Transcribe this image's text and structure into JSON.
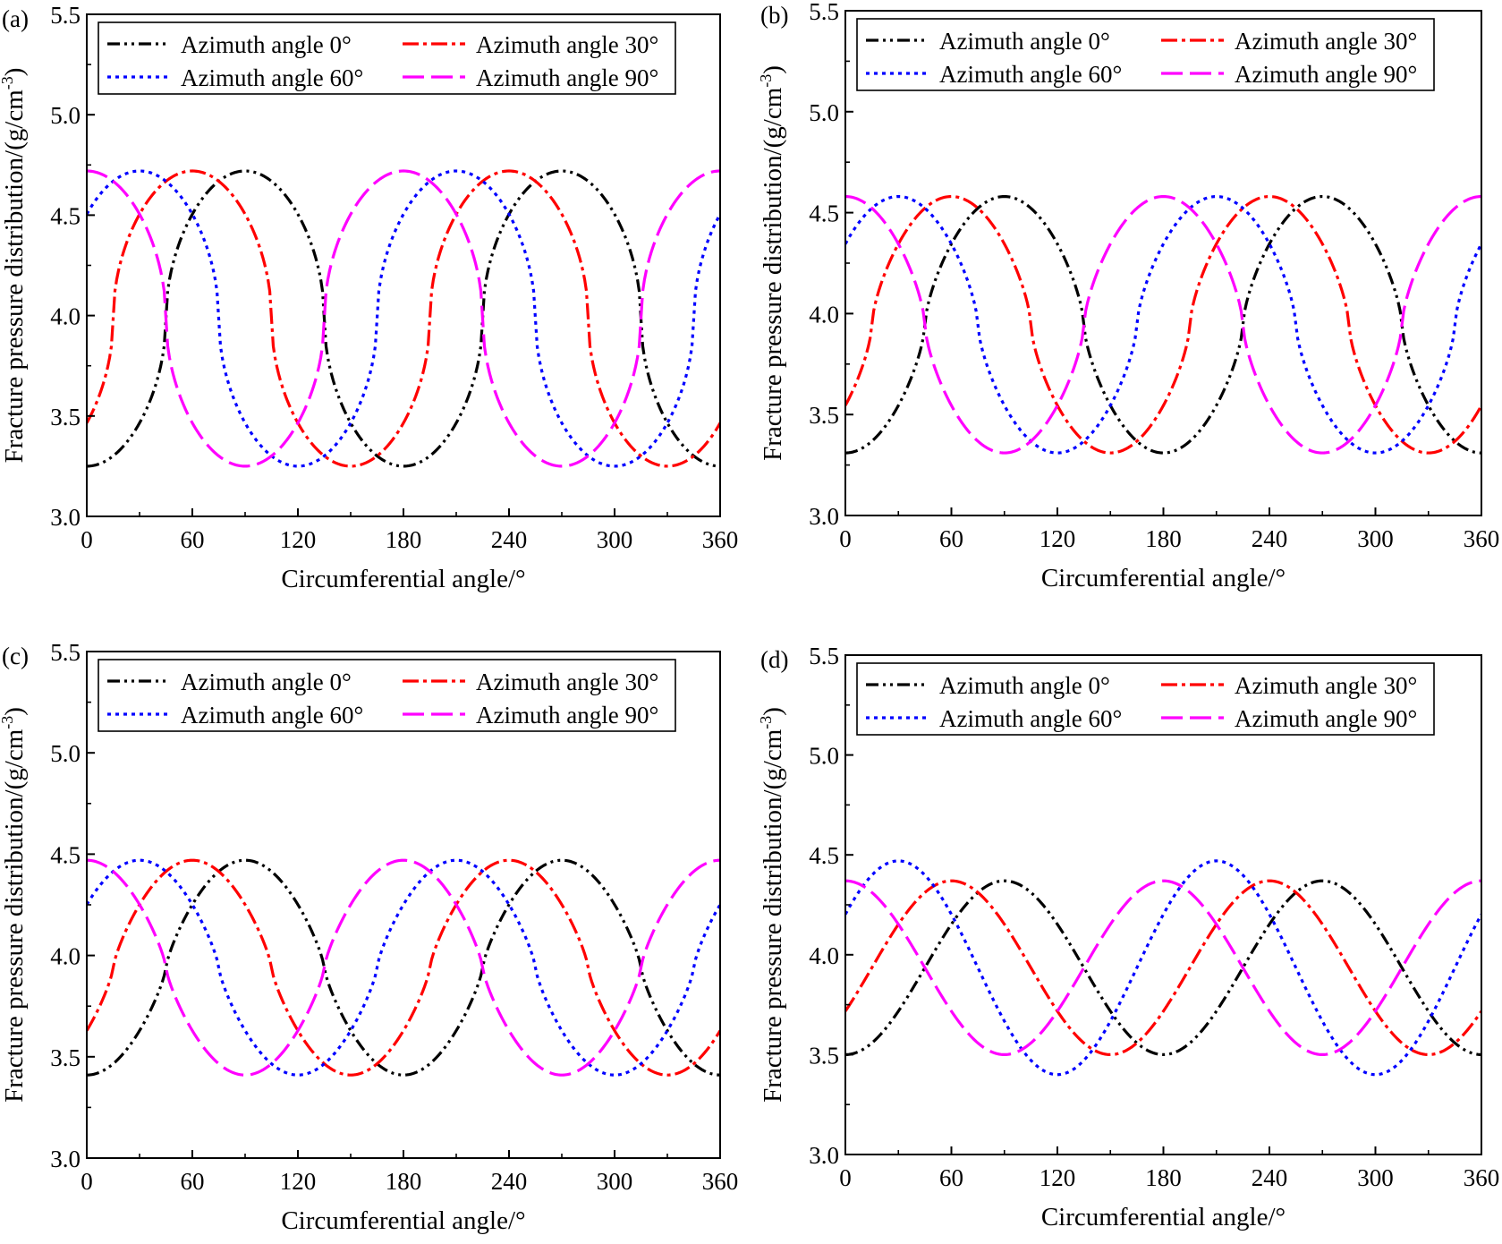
{
  "figure": {
    "colors": {
      "az0": "#000000",
      "az30": "#ff0000",
      "az60": "#0000ff",
      "az90": "#ff00ff"
    }
  },
  "chart_data": [
    {
      "type": "line",
      "panel_label": "(a)",
      "xlabel": "Circumferential angle/°",
      "ylabel_main": "Fracture pressure distribution/(g/cm",
      "ylabel_sup": "-3",
      "ylabel_tail": ")",
      "xlim": [
        0,
        360
      ],
      "ylim": [
        3.0,
        5.5
      ],
      "xticks": [
        0,
        60,
        120,
        180,
        240,
        300,
        360
      ],
      "xtick_labels": [
        "0",
        "60",
        "120",
        "180",
        "240",
        "300",
        "360"
      ],
      "yticks": [
        3.0,
        3.5,
        4.0,
        4.5,
        5.0,
        5.5
      ],
      "ytick_labels": [
        "3.0",
        "3.5",
        "4.0",
        "4.5",
        "5.0",
        "5.5"
      ],
      "legend_position": "top-left",
      "series": [
        {
          "name": "Azimuth angle 0°",
          "color": "#000000",
          "dash": "dashdotdot",
          "min": 3.25,
          "max": 4.72,
          "peak_at": 90,
          "sharpness": 2
        },
        {
          "name": "Azimuth angle 30°",
          "color": "#ff0000",
          "dash": "dashdot",
          "min": 3.25,
          "max": 4.72,
          "peak_at": 60,
          "sharpness": 2
        },
        {
          "name": "Azimuth angle 60°",
          "color": "#0000ff",
          "dash": "dotted",
          "min": 3.25,
          "max": 4.72,
          "peak_at": 30,
          "sharpness": 2
        },
        {
          "name": "Azimuth angle 90°",
          "color": "#ff00ff",
          "dash": "dashed",
          "min": 3.25,
          "max": 4.72,
          "peak_at": 0,
          "sharpness": 2
        }
      ]
    },
    {
      "type": "line",
      "panel_label": "(b)",
      "xlabel": "Circumferential angle/°",
      "ylabel_main": "Fracture pressure distribution/(g/cm",
      "ylabel_sup": "-3",
      "ylabel_tail": ")",
      "xlim": [
        0,
        360
      ],
      "ylim": [
        3.0,
        5.5
      ],
      "xticks": [
        0,
        60,
        120,
        180,
        240,
        300,
        360
      ],
      "xtick_labels": [
        "0",
        "60",
        "120",
        "180",
        "240",
        "300",
        "360"
      ],
      "yticks": [
        3.0,
        3.5,
        4.0,
        4.5,
        5.0,
        5.5
      ],
      "ytick_labels": [
        "3.0",
        "3.5",
        "4.0",
        "4.5",
        "5.0",
        "5.5"
      ],
      "legend_position": "top-left",
      "series": [
        {
          "name": "Azimuth angle 0°",
          "color": "#000000",
          "dash": "dashdotdot",
          "min": 3.31,
          "max": 4.58,
          "peak_at": 90,
          "sharpness": 1.5
        },
        {
          "name": "Azimuth angle 30°",
          "color": "#ff0000",
          "dash": "dashdot",
          "min": 3.31,
          "max": 4.58,
          "peak_at": 60,
          "sharpness": 1.5
        },
        {
          "name": "Azimuth angle 60°",
          "color": "#0000ff",
          "dash": "dotted",
          "min": 3.31,
          "max": 4.58,
          "peak_at": 30,
          "sharpness": 1.5
        },
        {
          "name": "Azimuth angle 90°",
          "color": "#ff00ff",
          "dash": "dashed",
          "min": 3.31,
          "max": 4.58,
          "peak_at": 0,
          "sharpness": 1.5
        }
      ]
    },
    {
      "type": "line",
      "panel_label": "(c)",
      "xlabel": "Circumferential angle/°",
      "ylabel_main": "Fracture pressure distribution/(g/cm",
      "ylabel_sup": "-3",
      "ylabel_tail": ")",
      "xlim": [
        0,
        360
      ],
      "ylim": [
        3.0,
        5.5
      ],
      "xticks": [
        0,
        60,
        120,
        180,
        240,
        300,
        360
      ],
      "xtick_labels": [
        "0",
        "60",
        "120",
        "180",
        "240",
        "300",
        "360"
      ],
      "yticks": [
        3.0,
        3.5,
        4.0,
        4.5,
        5.0,
        5.5
      ],
      "ytick_labels": [
        "3.0",
        "3.5",
        "4.0",
        "4.5",
        "5.0",
        "5.5"
      ],
      "legend_position": "top-left",
      "series": [
        {
          "name": "Azimuth angle 0°",
          "color": "#000000",
          "dash": "dashdotdot",
          "min": 3.41,
          "max": 4.47,
          "peak_at": 90,
          "sharpness": 1.3
        },
        {
          "name": "Azimuth angle 30°",
          "color": "#ff0000",
          "dash": "dashdot",
          "min": 3.41,
          "max": 4.47,
          "peak_at": 60,
          "sharpness": 1.3
        },
        {
          "name": "Azimuth angle 60°",
          "color": "#0000ff",
          "dash": "dotted",
          "min": 3.41,
          "max": 4.47,
          "peak_at": 30,
          "sharpness": 1.3
        },
        {
          "name": "Azimuth angle 90°",
          "color": "#ff00ff",
          "dash": "dashed",
          "min": 3.41,
          "max": 4.47,
          "peak_at": 0,
          "sharpness": 1.3
        }
      ]
    },
    {
      "type": "line",
      "panel_label": "(d)",
      "xlabel": "Circumferential angle/°",
      "ylabel_main": "Fracture pressure distribution/(g/cm",
      "ylabel_sup": "-3",
      "ylabel_tail": ")",
      "xlim": [
        0,
        360
      ],
      "ylim": [
        3.0,
        5.5
      ],
      "xticks": [
        0,
        60,
        120,
        180,
        240,
        300,
        360
      ],
      "xtick_labels": [
        "0",
        "60",
        "120",
        "180",
        "240",
        "300",
        "360"
      ],
      "yticks": [
        3.0,
        3.5,
        4.0,
        4.5,
        5.0,
        5.5
      ],
      "ytick_labels": [
        "3.0",
        "3.5",
        "4.0",
        "4.5",
        "5.0",
        "5.5"
      ],
      "legend_position": "top-left",
      "series": [
        {
          "name": "Azimuth angle 0°",
          "color": "#000000",
          "dash": "dashdotdot",
          "min": 3.5,
          "max": 4.37,
          "peak_at": 90,
          "sharpness": 1.0
        },
        {
          "name": "Azimuth angle 30°",
          "color": "#ff0000",
          "dash": "dashdot",
          "min": 3.5,
          "max": 4.37,
          "peak_at": 60,
          "sharpness": 1.0
        },
        {
          "name": "Azimuth angle 60°",
          "color": "#0000ff",
          "dash": "dotted",
          "min": 3.4,
          "max": 4.47,
          "peak_at": 30,
          "sharpness": 1.0
        },
        {
          "name": "Azimuth angle 90°",
          "color": "#ff00ff",
          "dash": "dashed",
          "min": 3.5,
          "max": 4.37,
          "peak_at": 0,
          "sharpness": 1.0
        }
      ]
    }
  ]
}
